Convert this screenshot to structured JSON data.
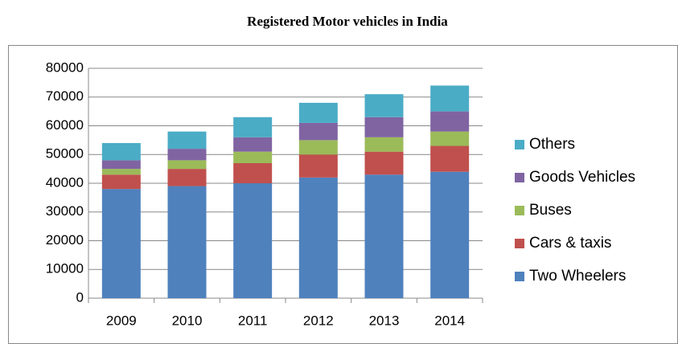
{
  "chart_data": {
    "type": "stacked_bar",
    "title": "Registered Motor vehicles in India",
    "categories": [
      "2009",
      "2010",
      "2011",
      "2012",
      "2013",
      "2014"
    ],
    "series": [
      {
        "name": "Two Wheelers",
        "color": "#4f81bd",
        "values": [
          38000,
          39000,
          40000,
          42000,
          43000,
          44000
        ]
      },
      {
        "name": "Cars & taxis",
        "color": "#c0504d",
        "values": [
          5000,
          6000,
          7000,
          8000,
          8000,
          9000
        ]
      },
      {
        "name": "Buses",
        "color": "#9bbb59",
        "values": [
          2000,
          3000,
          4000,
          5000,
          5000,
          5000
        ]
      },
      {
        "name": "Goods Vehicles",
        "color": "#8064a2",
        "values": [
          3000,
          4000,
          5000,
          6000,
          7000,
          7000
        ]
      },
      {
        "name": "Others",
        "color": "#4bacc6",
        "values": [
          6000,
          6000,
          7000,
          7000,
          8000,
          9000
        ]
      }
    ],
    "ylim": [
      0,
      80000
    ],
    "yticks": [
      0,
      10000,
      20000,
      30000,
      40000,
      50000,
      60000,
      70000,
      80000
    ],
    "grid": true,
    "legend": "right"
  }
}
